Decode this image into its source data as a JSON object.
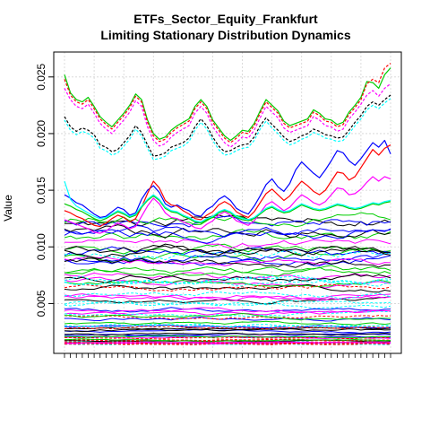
{
  "chart_data": {
    "type": "line",
    "title": "ETFs_Sector_Equity_Frankfurt",
    "subtitle": "Limiting Stationary Distribution Dynamics",
    "xlabel": "",
    "ylabel": "Value",
    "ylim": [
      0.0006,
      0.0272
    ],
    "y_ticks": [
      0.005,
      0.01,
      0.015,
      0.02,
      0.025
    ],
    "y_tick_labels": [
      "0.005",
      "0.010",
      "0.015",
      "0.020",
      "0.025"
    ],
    "grid": true,
    "legend": "none",
    "palette": [
      "#000000",
      "#ff0000",
      "#00cd00",
      "#0000ff",
      "#00ffff",
      "#ff00ff"
    ],
    "x_count": 56,
    "top_series": [
      {
        "color": "#00cd00",
        "dash": false,
        "values": [
          0.0252,
          0.0236,
          0.023,
          0.0228,
          0.0232,
          0.0224,
          0.0215,
          0.021,
          0.0206,
          0.0212,
          0.0218,
          0.0225,
          0.0235,
          0.023,
          0.0212,
          0.02,
          0.0195,
          0.0197,
          0.0203,
          0.0207,
          0.021,
          0.0213,
          0.0224,
          0.023,
          0.0224,
          0.0212,
          0.0205,
          0.0198,
          0.0194,
          0.0198,
          0.0203,
          0.0202,
          0.0209,
          0.022,
          0.023,
          0.0225,
          0.022,
          0.0211,
          0.0207,
          0.0209,
          0.0211,
          0.0213,
          0.0221,
          0.0218,
          0.0213,
          0.0212,
          0.0208,
          0.021,
          0.0219,
          0.0225,
          0.0232,
          0.0246,
          0.0245,
          0.024,
          0.0252,
          0.0258
        ]
      },
      {
        "color": "#ff0000",
        "dash": true,
        "values": [
          0.0248,
          0.0234,
          0.0228,
          0.0226,
          0.023,
          0.0222,
          0.0213,
          0.0208,
          0.0204,
          0.021,
          0.0216,
          0.0223,
          0.0233,
          0.0228,
          0.021,
          0.0198,
          0.0193,
          0.0195,
          0.0201,
          0.0205,
          0.0208,
          0.0211,
          0.0222,
          0.0228,
          0.0222,
          0.021,
          0.0203,
          0.0196,
          0.0192,
          0.0196,
          0.0201,
          0.02,
          0.0207,
          0.0218,
          0.0228,
          0.0223,
          0.0218,
          0.0209,
          0.0205,
          0.0207,
          0.0209,
          0.0211,
          0.0219,
          0.0216,
          0.0211,
          0.021,
          0.0206,
          0.0208,
          0.0217,
          0.0223,
          0.023,
          0.0244,
          0.0248,
          0.0245,
          0.0258,
          0.0262
        ]
      },
      {
        "color": "#000000",
        "dash": true,
        "values": [
          0.0215,
          0.0206,
          0.0202,
          0.0205,
          0.0203,
          0.0199,
          0.019,
          0.0188,
          0.0184,
          0.0186,
          0.0192,
          0.0198,
          0.0207,
          0.0201,
          0.019,
          0.018,
          0.0181,
          0.0183,
          0.0188,
          0.019,
          0.0192,
          0.0196,
          0.0206,
          0.0213,
          0.0207,
          0.0197,
          0.0189,
          0.0184,
          0.0185,
          0.0188,
          0.019,
          0.0191,
          0.0197,
          0.0207,
          0.0214,
          0.0208,
          0.0203,
          0.0197,
          0.0193,
          0.0195,
          0.0198,
          0.02,
          0.0204,
          0.0202,
          0.0199,
          0.0198,
          0.0196,
          0.0197,
          0.0203,
          0.021,
          0.0216,
          0.0224,
          0.0228,
          0.0225,
          0.023,
          0.0234
        ]
      },
      {
        "color": "#00ffff",
        "dash": true,
        "values": [
          0.0212,
          0.0203,
          0.0199,
          0.0202,
          0.02,
          0.0196,
          0.0187,
          0.0185,
          0.0181,
          0.0183,
          0.0189,
          0.0195,
          0.0204,
          0.0198,
          0.0187,
          0.0177,
          0.0178,
          0.018,
          0.0185,
          0.0187,
          0.0189,
          0.0193,
          0.0203,
          0.021,
          0.0204,
          0.0194,
          0.0186,
          0.0181,
          0.0182,
          0.0185,
          0.0187,
          0.0188,
          0.0194,
          0.0204,
          0.0211,
          0.0205,
          0.02,
          0.0194,
          0.019,
          0.0192,
          0.0195,
          0.0197,
          0.0201,
          0.0199,
          0.0196,
          0.0195,
          0.0193,
          0.0194,
          0.02,
          0.0207,
          0.0213,
          0.0221,
          0.0225,
          0.0222,
          0.0227,
          0.0231
        ]
      },
      {
        "color": "#ff00ff",
        "dash": true,
        "values": [
          0.024,
          0.023,
          0.0224,
          0.0222,
          0.0226,
          0.0218,
          0.0209,
          0.0204,
          0.02,
          0.0206,
          0.0212,
          0.0219,
          0.0229,
          0.0224,
          0.0206,
          0.0194,
          0.0189,
          0.0191,
          0.0197,
          0.0201,
          0.0204,
          0.0207,
          0.0218,
          0.0224,
          0.0218,
          0.0206,
          0.0199,
          0.0192,
          0.0188,
          0.0192,
          0.0197,
          0.0196,
          0.0203,
          0.0214,
          0.0224,
          0.0219,
          0.0214,
          0.0205,
          0.0201,
          0.0203,
          0.0205,
          0.0207,
          0.0215,
          0.0212,
          0.0207,
          0.0206,
          0.0202,
          0.0204,
          0.0213,
          0.0219,
          0.0226,
          0.0234,
          0.0238,
          0.0233,
          0.024,
          0.0244
        ]
      }
    ],
    "rising_series": [
      {
        "color": "#0000ff",
        "dash": false,
        "values": [
          0.0146,
          0.0143,
          0.0139,
          0.0137,
          0.0133,
          0.0129,
          0.0126,
          0.0127,
          0.0131,
          0.0135,
          0.0133,
          0.0128,
          0.013,
          0.0142,
          0.015,
          0.0154,
          0.0148,
          0.0138,
          0.0135,
          0.0137,
          0.0134,
          0.0132,
          0.0128,
          0.0127,
          0.0133,
          0.0136,
          0.0142,
          0.0145,
          0.0141,
          0.0134,
          0.0131,
          0.0129,
          0.0136,
          0.0145,
          0.0155,
          0.016,
          0.0153,
          0.0149,
          0.0156,
          0.0168,
          0.0175,
          0.017,
          0.0165,
          0.0161,
          0.0168,
          0.0176,
          0.0185,
          0.0183,
          0.0176,
          0.0172,
          0.0178,
          0.0185,
          0.0192,
          0.0188,
          0.0194,
          0.0182
        ]
      },
      {
        "color": "#ff0000",
        "dash": false,
        "values": [
          0.0132,
          0.013,
          0.0127,
          0.0125,
          0.0122,
          0.0119,
          0.0118,
          0.0121,
          0.0125,
          0.0128,
          0.0126,
          0.0122,
          0.0125,
          0.0135,
          0.0147,
          0.0158,
          0.0152,
          0.0141,
          0.0137,
          0.0136,
          0.0132,
          0.0129,
          0.0125,
          0.0124,
          0.0128,
          0.0131,
          0.0137,
          0.014,
          0.0137,
          0.0131,
          0.0128,
          0.0126,
          0.0131,
          0.0139,
          0.0147,
          0.0151,
          0.0146,
          0.0141,
          0.0145,
          0.0152,
          0.0158,
          0.0154,
          0.0149,
          0.0146,
          0.015,
          0.0158,
          0.0166,
          0.0165,
          0.0159,
          0.0162,
          0.017,
          0.0178,
          0.0186,
          0.0181,
          0.0187,
          0.019
        ]
      },
      {
        "color": "#ff00ff",
        "dash": false,
        "values": [
          0.0124,
          0.0122,
          0.012,
          0.0118,
          0.0116,
          0.0113,
          0.0112,
          0.0114,
          0.0118,
          0.0121,
          0.0119,
          0.0116,
          0.0118,
          0.0127,
          0.0136,
          0.0143,
          0.0138,
          0.013,
          0.0126,
          0.0125,
          0.0122,
          0.012,
          0.0117,
          0.0116,
          0.012,
          0.0123,
          0.0128,
          0.0131,
          0.0128,
          0.0123,
          0.0121,
          0.0119,
          0.0123,
          0.013,
          0.0137,
          0.014,
          0.0136,
          0.0132,
          0.0135,
          0.0141,
          0.0146,
          0.0143,
          0.0139,
          0.0137,
          0.014,
          0.0146,
          0.0152,
          0.0151,
          0.0146,
          0.0147,
          0.0151,
          0.0157,
          0.0162,
          0.0158,
          0.0162,
          0.016
        ]
      },
      {
        "color": "#00cd00",
        "dash": false,
        "values": [
          0.0138,
          0.0136,
          0.0133,
          0.0131,
          0.0128,
          0.0125,
          0.0123,
          0.0125,
          0.0128,
          0.0131,
          0.0129,
          0.0126,
          0.0128,
          0.0135,
          0.0141,
          0.0145,
          0.0141,
          0.0134,
          0.0131,
          0.013,
          0.0127,
          0.0125,
          0.0122,
          0.0121,
          0.0124,
          0.0126,
          0.013,
          0.0132,
          0.013,
          0.0126,
          0.0124,
          0.0123,
          0.0125,
          0.0129,
          0.0133,
          0.0135,
          0.0132,
          0.013,
          0.0131,
          0.0134,
          0.0137,
          0.0135,
          0.0133,
          0.0132,
          0.0133,
          0.0135,
          0.0137,
          0.0136,
          0.0134,
          0.0133,
          0.0134,
          0.0136,
          0.0138,
          0.0137,
          0.0139,
          0.014
        ]
      },
      {
        "color": "#00ffff",
        "dash": false,
        "values": [
          0.0158,
          0.0142,
          0.0136,
          0.0133,
          0.013,
          0.0127,
          0.0125,
          0.0126,
          0.0129,
          0.0132,
          0.013,
          0.0127,
          0.0129,
          0.0136,
          0.0142,
          0.0146,
          0.0142,
          0.0135,
          0.0132,
          0.0131,
          0.0128,
          0.0126,
          0.0123,
          0.0122,
          0.0125,
          0.0127,
          0.0131,
          0.0133,
          0.0131,
          0.0127,
          0.0125,
          0.0124,
          0.0126,
          0.013,
          0.0134,
          0.0136,
          0.0133,
          0.0131,
          0.0132,
          0.0135,
          0.0138,
          0.0136,
          0.0134,
          0.0133,
          0.0134,
          0.0136,
          0.0138,
          0.0137,
          0.0135,
          0.0134,
          0.0135,
          0.0137,
          0.0139,
          0.0138,
          0.014,
          0.0141
        ]
      }
    ],
    "band_series_count": 72,
    "band_range": [
      0.0014,
      0.0125
    ],
    "band_period_range": [
      3,
      11
    ],
    "band_amplitude": 0.5
  }
}
